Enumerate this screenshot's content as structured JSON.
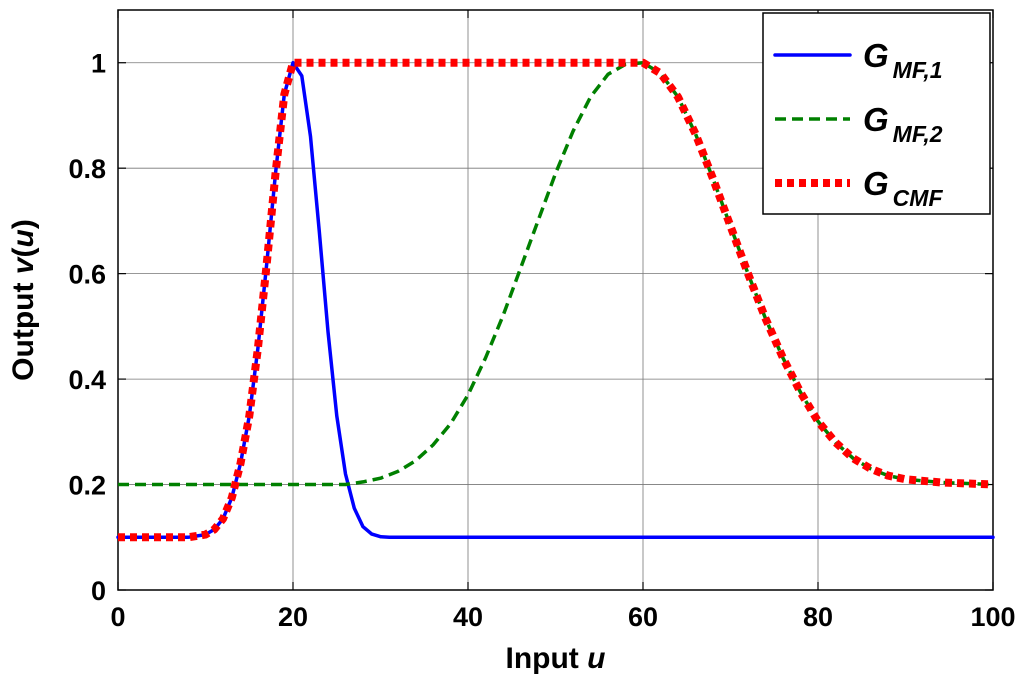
{
  "chart_data": {
    "type": "line",
    "xlabel": "Input",
    "xlabel_var": "u",
    "ylabel_prefix": "Output ",
    "ylabel_func": "v",
    "ylabel_open": "(",
    "ylabel_var": "u",
    "ylabel_close": ")",
    "xlim": [
      0,
      100
    ],
    "ylim": [
      0,
      1.1
    ],
    "xticks": [
      0,
      20,
      40,
      60,
      80,
      100
    ],
    "xtick_labels": [
      "0",
      "20",
      "40",
      "60",
      "80",
      "100"
    ],
    "yticks": [
      0,
      0.2,
      0.4,
      0.6,
      0.8,
      1
    ],
    "ytick_labels": [
      "0",
      "0.2",
      "0.4",
      "0.6",
      "0.8",
      "1"
    ],
    "grid": true,
    "legend_position": "top-right",
    "series": [
      {
        "name": "G_{MF,1}",
        "legend_main": "G",
        "legend_sub": "MF,1",
        "style": "solid",
        "color": "#0000ff",
        "x": [
          0,
          2,
          4,
          6,
          8,
          10,
          11,
          12,
          13,
          14,
          15,
          16,
          17,
          18,
          19,
          20,
          21,
          22,
          23,
          24,
          25,
          26,
          27,
          28,
          29,
          30,
          31,
          32,
          34,
          36,
          40,
          50,
          60,
          70,
          80,
          90,
          100
        ],
        "y": [
          0.1,
          0.1,
          0.1,
          0.1,
          0.1,
          0.105,
          0.115,
          0.135,
          0.175,
          0.24,
          0.33,
          0.46,
          0.62,
          0.79,
          0.94,
          1.0,
          0.975,
          0.86,
          0.68,
          0.49,
          0.33,
          0.22,
          0.155,
          0.12,
          0.106,
          0.101,
          0.1,
          0.1,
          0.1,
          0.1,
          0.1,
          0.1,
          0.1,
          0.1,
          0.1,
          0.1,
          0.1
        ]
      },
      {
        "name": "G_{MF,2}",
        "legend_main": "G",
        "legend_sub": "MF,2",
        "style": "dashed",
        "color": "#008000",
        "x": [
          0,
          10,
          20,
          26,
          28,
          30,
          32,
          34,
          36,
          38,
          40,
          42,
          44,
          46,
          48,
          50,
          52,
          54,
          56,
          58,
          60,
          62,
          64,
          66,
          68,
          70,
          72,
          74,
          76,
          78,
          80,
          82,
          84,
          86,
          88,
          90,
          94,
          100
        ],
        "y": [
          0.2,
          0.2,
          0.2,
          0.2,
          0.205,
          0.212,
          0.225,
          0.245,
          0.275,
          0.315,
          0.37,
          0.44,
          0.52,
          0.61,
          0.7,
          0.79,
          0.87,
          0.935,
          0.978,
          0.997,
          1.0,
          0.98,
          0.935,
          0.865,
          0.78,
          0.69,
          0.6,
          0.515,
          0.44,
          0.375,
          0.32,
          0.28,
          0.25,
          0.23,
          0.217,
          0.21,
          0.204,
          0.2
        ]
      },
      {
        "name": "G_{CMF}",
        "legend_main": "G",
        "legend_sub": "CMF",
        "style": "dotted",
        "color": "#ff0000",
        "x": [
          0,
          2,
          4,
          6,
          8,
          10,
          11,
          12,
          13,
          14,
          15,
          16,
          17,
          18,
          19,
          20,
          30,
          40,
          50,
          60,
          62,
          64,
          66,
          68,
          70,
          72,
          74,
          76,
          78,
          80,
          82,
          84,
          86,
          88,
          90,
          94,
          100
        ],
        "y": [
          0.1,
          0.1,
          0.1,
          0.1,
          0.1,
          0.105,
          0.115,
          0.135,
          0.175,
          0.24,
          0.33,
          0.46,
          0.62,
          0.79,
          0.94,
          1.0,
          1.0,
          1.0,
          1.0,
          1.0,
          0.98,
          0.935,
          0.865,
          0.78,
          0.69,
          0.6,
          0.515,
          0.44,
          0.375,
          0.32,
          0.28,
          0.25,
          0.23,
          0.217,
          0.21,
          0.204,
          0.2
        ]
      }
    ]
  }
}
